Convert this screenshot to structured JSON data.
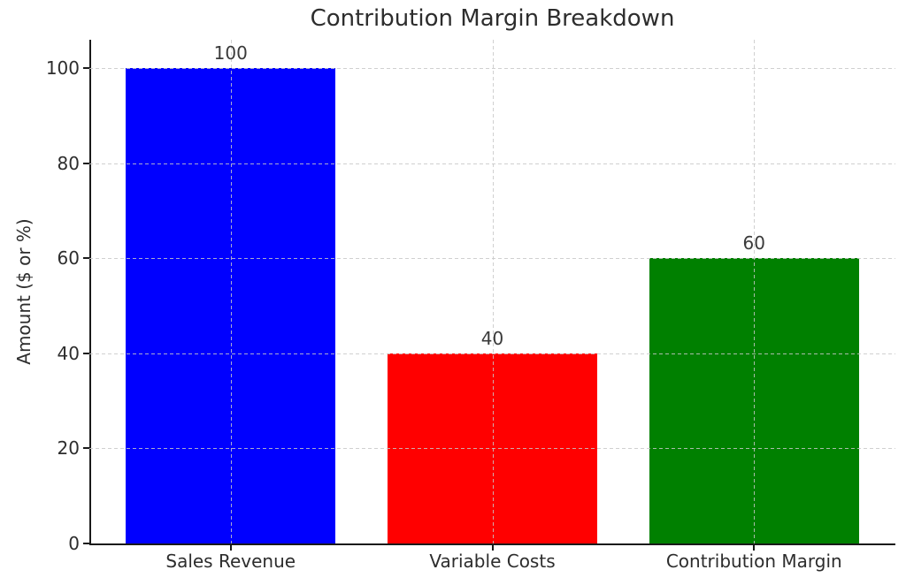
{
  "chart_data": {
    "type": "bar",
    "title": "Contribution Margin Breakdown",
    "ylabel": "Amount ($ or %)",
    "xlabel": "",
    "categories": [
      "Sales Revenue",
      "Variable Costs",
      "Contribution Margin"
    ],
    "values": [
      100,
      40,
      60
    ],
    "value_labels": [
      "100",
      "40",
      "60"
    ],
    "bar_colors": [
      "#0000ff",
      "#ff0000",
      "#008000"
    ],
    "yticks": [
      0,
      20,
      40,
      60,
      80,
      100
    ],
    "ylim": [
      0,
      106
    ],
    "grid": "dashed light-gray gridlines, horizontal and vertical, drawn above bars",
    "legend": "none",
    "spines": "left and bottom only, dark"
  }
}
